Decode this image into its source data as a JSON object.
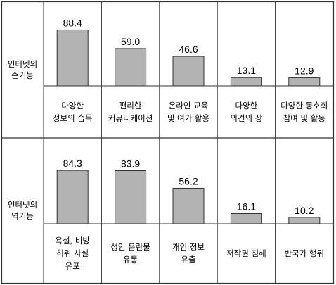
{
  "chart_data": {
    "type": "bar",
    "ylim": [
      0,
      100
    ],
    "panels": [
      {
        "row_label": [
          "인터넷의",
          "순기능"
        ],
        "categories": [
          [
            "다양한",
            "정보의 습득"
          ],
          [
            "편리한",
            "커뮤니케이션"
          ],
          [
            "온라인 교육",
            "및 여가 활용"
          ],
          [
            "다양한",
            "의견의 장"
          ],
          [
            "다양한 동호회",
            "참여 및 활동"
          ]
        ],
        "values": [
          88.4,
          59.0,
          46.6,
          13.1,
          12.9
        ],
        "value_labels": [
          "88.4",
          "59.0",
          "46.6",
          "13.1",
          "12.9"
        ]
      },
      {
        "row_label": [
          "인터넷의",
          "역기능"
        ],
        "categories": [
          [
            "욕설, 비방",
            "허위 사실",
            "유포"
          ],
          [
            "성인 음란물",
            "유통"
          ],
          [
            "개인 정보",
            "유출"
          ],
          [
            "저작권 침해"
          ],
          [
            "반국가 행위"
          ]
        ],
        "values": [
          84.3,
          83.9,
          56.2,
          16.1,
          10.2
        ],
        "value_labels": [
          "84.3",
          "83.9",
          "56.2",
          "16.1",
          "10.2"
        ]
      }
    ]
  },
  "colors": {
    "bar_fill": "#b3b3b3",
    "bar_stroke": "#333333",
    "border": "#333333"
  }
}
